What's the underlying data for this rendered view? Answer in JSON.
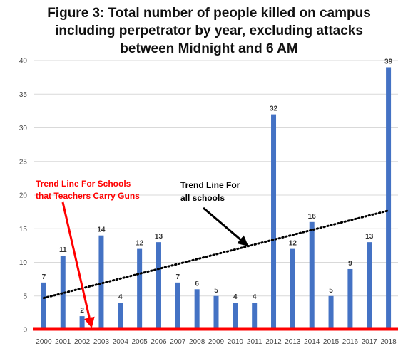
{
  "chart_data": {
    "type": "bar",
    "title_lines": [
      "Figure 3: Total number of people killed on campus",
      "including perpetrator by year, excluding attacks",
      "between Midnight and 6 AM"
    ],
    "categories": [
      "2000",
      "2001",
      "2002",
      "2003",
      "2004",
      "2005",
      "2006",
      "2007",
      "2008",
      "2009",
      "2010",
      "2011",
      "2012",
      "2013",
      "2014",
      "2015",
      "2016",
      "2017",
      "2018"
    ],
    "values": [
      7,
      11,
      2,
      14,
      4,
      12,
      13,
      7,
      6,
      5,
      4,
      4,
      32,
      12,
      16,
      5,
      9,
      13,
      39
    ],
    "ylim": [
      0,
      40
    ],
    "yticks": [
      0,
      5,
      10,
      15,
      20,
      25,
      30,
      35,
      40
    ],
    "bar_color": "#4472c4",
    "grid": true,
    "trend_all": {
      "label_lines": [
        "Trend Line For",
        "all schools"
      ],
      "start_value": 4.7,
      "end_value": 17.7,
      "color": "#000000"
    },
    "trend_teachers": {
      "label_lines": [
        "Trend Line For Schools",
        "that Teachers Carry Guns"
      ],
      "value": 0,
      "color": "#ff0000"
    }
  }
}
